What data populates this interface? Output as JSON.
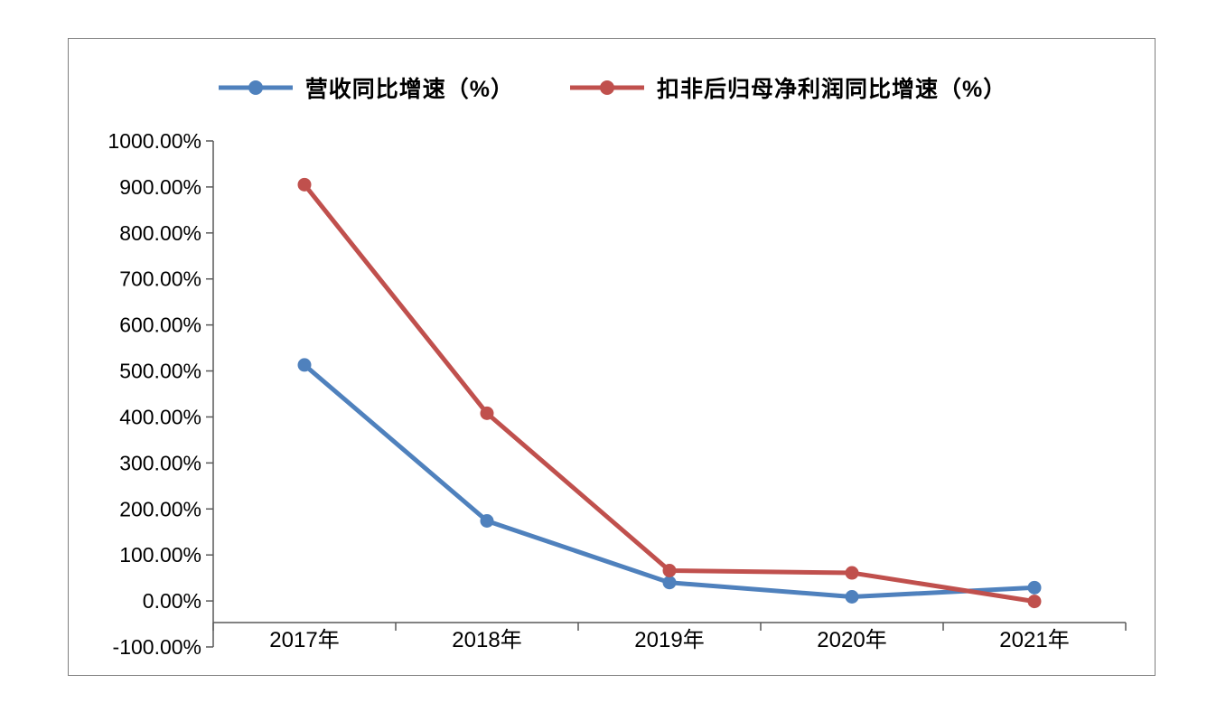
{
  "chart_data": {
    "type": "line",
    "categories": [
      "2017年",
      "2018年",
      "2019年",
      "2020年",
      "2021年"
    ],
    "series": [
      {
        "name": "营收同比增速（%）",
        "color": "#4f81bd",
        "values": [
          513,
          174,
          40,
          9,
          29
        ]
      },
      {
        "name": "扣非后归母净利润同比增速（%）",
        "color": "#c0504d",
        "values": [
          905,
          408,
          66,
          61,
          -1
        ]
      }
    ],
    "ylabel": "",
    "xlabel": "",
    "title": "",
    "ylim": [
      -100,
      1000
    ],
    "ytick_step": 100,
    "ytick_labels": [
      "1000.00%",
      "900.00%",
      "800.00%",
      "700.00%",
      "600.00%",
      "500.00%",
      "400.00%",
      "300.00%",
      "200.00%",
      "100.00%",
      "0.00%",
      "-100.00%"
    ],
    "legend_position": "top",
    "grid": false,
    "axis_color": "#595959",
    "text_color": "#000000"
  }
}
